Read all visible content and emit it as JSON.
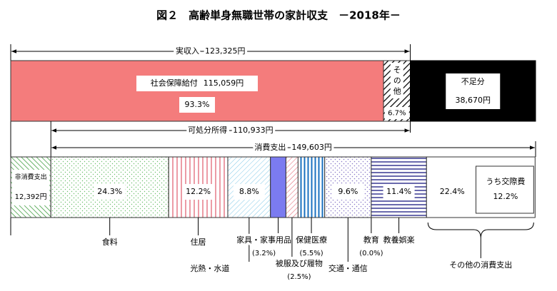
{
  "chart_data": {
    "type": "household-budget",
    "title": "図２　高齢単身無職世帯の家計収支　－2018年－",
    "income": {
      "label": "実収入",
      "value": 123325,
      "value_label": "123,325円"
    },
    "social_security": {
      "label": "社会保障給付",
      "value": 115059,
      "value_label": "115,059円",
      "share": 93.3,
      "share_label": "93.3%"
    },
    "other_income": {
      "label": "その他",
      "share": 6.7,
      "share_label": "6.7%"
    },
    "shortfall": {
      "label": "不足分",
      "value": 38670,
      "value_label": "38,670円"
    },
    "disposable": {
      "label": "可処分所得",
      "value": 110933,
      "value_label": "110,933円"
    },
    "consumption": {
      "label": "消費支出",
      "value": 149603,
      "value_label": "149,603円"
    },
    "non_consumption": {
      "label": "非消費支出",
      "value": 12392,
      "value_label": "12,392円"
    },
    "categories": [
      "食料",
      "住居",
      "光熱・水道",
      "家具・家事用品",
      "被服及び履物",
      "保健医療",
      "交通・通信",
      "教育",
      "教養娯楽",
      "その他の消費支出"
    ],
    "values": [
      24.3,
      12.2,
      8.8,
      3.2,
      2.5,
      5.5,
      9.6,
      0.0,
      11.4,
      22.4
    ],
    "value_labels": [
      "24.3%",
      "12.2%",
      "8.8%",
      "(3.2%)",
      "(2.5%)",
      "(5.5%)",
      "9.6%",
      "(0.0%)",
      "11.4%",
      "22.4%"
    ],
    "sub_item": {
      "label": "うち交際費",
      "value": 12.2,
      "value_label": "12.2%"
    }
  }
}
